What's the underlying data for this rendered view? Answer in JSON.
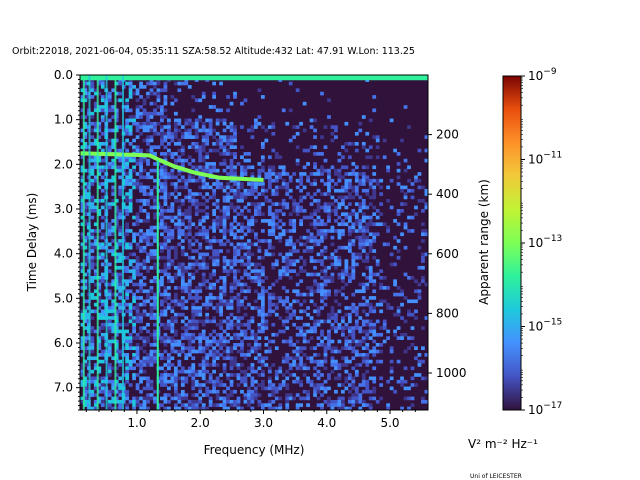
{
  "chart_data": {
    "type": "heatmap",
    "title": "Orbit:22018, 2021-06-04, 05:35:11 SZA:58.52 Altitude:432 Lat: 47.91 W.Lon: 113.25",
    "xlabel": "Frequency (MHz)",
    "ylabel": "Time Delay (ms)",
    "y2label": "Apparent range (km)",
    "xlim": [
      0.1,
      5.6
    ],
    "ylim": [
      7.5,
      0.0
    ],
    "x_ticks": [
      {
        "value": 1.0,
        "label": "1.0"
      },
      {
        "value": 2.0,
        "label": "2.0"
      },
      {
        "value": 3.0,
        "label": "3.0"
      },
      {
        "value": 4.0,
        "label": "4.0"
      },
      {
        "value": 5.0,
        "label": "5.0"
      }
    ],
    "y_ticks": [
      {
        "value": 0.0,
        "label": "0.0"
      },
      {
        "value": 1.0,
        "label": "1.0"
      },
      {
        "value": 2.0,
        "label": "2.0"
      },
      {
        "value": 3.0,
        "label": "3.0"
      },
      {
        "value": 4.0,
        "label": "4.0"
      },
      {
        "value": 5.0,
        "label": "5.0"
      },
      {
        "value": 6.0,
        "label": "6.0"
      },
      {
        "value": 7.0,
        "label": "7.0"
      }
    ],
    "y2_ticks": [
      {
        "value": 200,
        "label": "200"
      },
      {
        "value": 400,
        "label": "400"
      },
      {
        "value": 600,
        "label": "600"
      },
      {
        "value": 800,
        "label": "800"
      },
      {
        "value": 1000,
        "label": "1000"
      }
    ],
    "colorbar": {
      "colormap": "turbo",
      "scale": "log",
      "range": [
        1e-17,
        1e-09
      ],
      "ticks": [
        {
          "exp": -9,
          "label_base": "10",
          "label_exp": "−9"
        },
        {
          "exp": -11,
          "label_base": "10",
          "label_exp": "−11"
        },
        {
          "exp": -13,
          "label_base": "10",
          "label_exp": "−13"
        },
        {
          "exp": -15,
          "label_base": "10",
          "label_exp": "−15"
        },
        {
          "exp": -17,
          "label_base": "10",
          "label_exp": "−17"
        }
      ],
      "unit_label": "V² m⁻² Hz⁻¹"
    },
    "traces": [
      {
        "kind": "ground-echo",
        "points": [
          [
            0.1,
            1.75
          ],
          [
            1.2,
            1.8
          ],
          [
            1.35,
            1.9
          ],
          [
            1.6,
            2.05
          ],
          [
            1.9,
            2.18
          ],
          [
            2.3,
            2.3
          ],
          [
            3.0,
            2.35
          ]
        ]
      },
      {
        "kind": "top-band",
        "points": [
          [
            0.1,
            0.05
          ],
          [
            5.6,
            0.05
          ]
        ]
      },
      {
        "kind": "vertical-line",
        "points": [
          [
            1.33,
            1.9
          ],
          [
            1.33,
            7.5
          ]
        ]
      }
    ],
    "background_color": "#30123b"
  },
  "footer": {
    "credit": "Uni of LEICESTER"
  }
}
